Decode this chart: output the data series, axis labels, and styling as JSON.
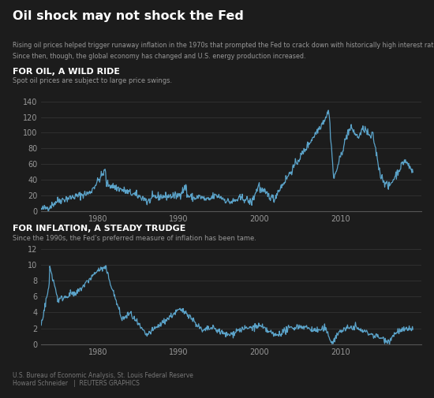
{
  "bg_color": "#1c1c1c",
  "text_color": "#ffffff",
  "line_color": "#5ba3c9",
  "grid_color": "#333333",
  "axis_color": "#555555",
  "muted_color": "#999999",
  "title": "Oil shock may not shock the Fed",
  "subtitle_line1": "Rising oil prices helped trigger runaway inflation in the 1970s that prompted the Fed to crack down with historically high interest rates.",
  "subtitle_line2": "Since then, though, the global economy has changed and U.S. energy production increased.",
  "oil_section_title": "FOR OIL, A WILD RIDE",
  "oil_section_subtitle": "Spot oil prices are subject to large price swings.",
  "inflation_section_title": "FOR INFLATION, A STEADY TRUDGE",
  "inflation_section_subtitle": "Since the 1990s, the Fed’s preferred measure of inflation has been tame.",
  "source_line1": "U.S. Bureau of Economic Analysis, St. Louis Federal Reserve",
  "source_line2": "Howard Schneider   |  REUTERS GRAPHICS",
  "oil_ylim": [
    0,
    140
  ],
  "oil_yticks": [
    0,
    20,
    40,
    60,
    80,
    100,
    120,
    140
  ],
  "inflation_ylim": [
    0,
    12
  ],
  "inflation_yticks": [
    0,
    2,
    4,
    6,
    8,
    10,
    12
  ],
  "x_ticks": [
    1980,
    1990,
    2000,
    2010
  ],
  "xlim_start": 1973,
  "xlim_end": 2020
}
